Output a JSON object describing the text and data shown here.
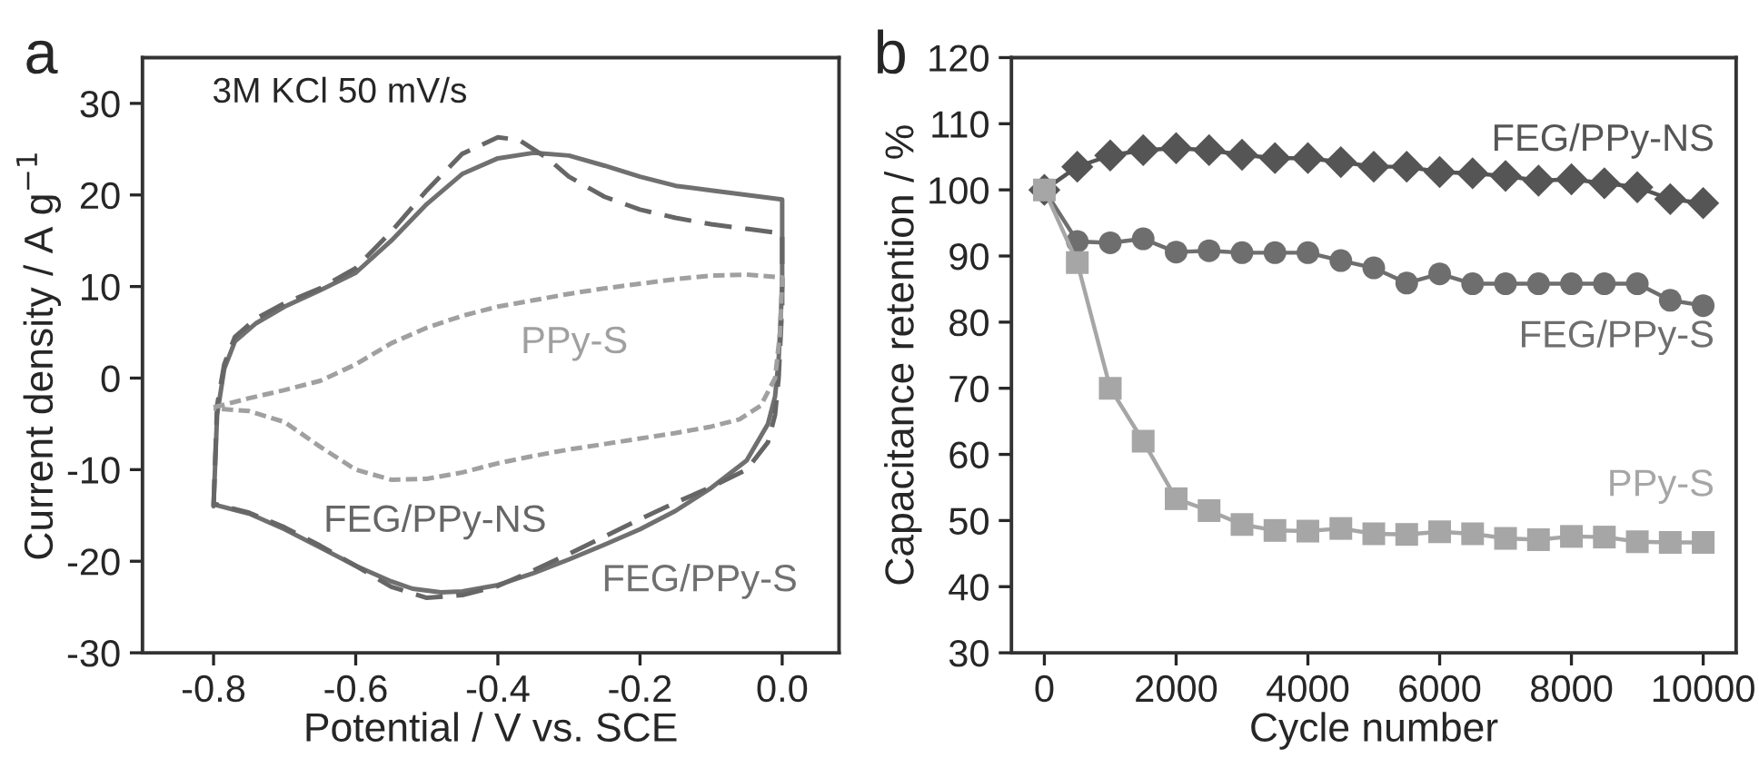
{
  "chart_data": [
    {
      "type": "line",
      "title": "a",
      "xlabel": "Potential / V vs. SCE",
      "ylabel": "Current density / A g$^{−1}$",
      "annotations": [
        "3M KCl 50 mV/s"
      ],
      "xlim": [
        -0.9,
        0.08
      ],
      "ylim": [
        -30,
        35
      ],
      "xticks": [
        {
          "value": -0.8,
          "label": "-0.8"
        },
        {
          "value": -0.6,
          "label": "-0.6"
        },
        {
          "value": -0.4,
          "label": "-0.4"
        },
        {
          "value": -0.2,
          "label": "-0.2"
        },
        {
          "value": 0.0,
          "label": "0.0"
        }
      ],
      "yticks": [
        -30,
        -20,
        -10,
        0,
        10,
        20,
        30
      ],
      "grid": false,
      "legend": false,
      "series": [
        {
          "name": "FEG/PPy-S",
          "color": "#707070",
          "line_style": "solid",
          "x": [
            -0.8,
            -0.795,
            -0.785,
            -0.77,
            -0.74,
            -0.7,
            -0.65,
            -0.6,
            -0.55,
            -0.5,
            -0.45,
            -0.4,
            -0.35,
            -0.3,
            -0.25,
            -0.2,
            -0.15,
            -0.1,
            -0.05,
            0.0,
            0.0,
            -0.005,
            -0.01,
            -0.02,
            -0.05,
            -0.1,
            -0.15,
            -0.2,
            -0.25,
            -0.3,
            -0.35,
            -0.4,
            -0.45,
            -0.48,
            -0.52,
            -0.55,
            -0.6,
            -0.65,
            -0.7,
            -0.75,
            -0.8
          ],
          "values": [
            -14,
            -4,
            1,
            4,
            6,
            7.8,
            9.6,
            11.5,
            15,
            19,
            22.3,
            24,
            24.6,
            24.3,
            23.2,
            22,
            21,
            20.5,
            20,
            19.5,
            10,
            2,
            -2,
            -5,
            -9,
            -12,
            -14.5,
            -16.5,
            -18.2,
            -19.8,
            -21.3,
            -22.6,
            -23.3,
            -23.4,
            -23,
            -22.2,
            -20.5,
            -18.5,
            -16.5,
            -14.8,
            -13.8
          ]
        },
        {
          "name": "FEG/PPy-NS",
          "color": "#666666",
          "line_style": "dashed",
          "x": [
            -0.8,
            -0.795,
            -0.785,
            -0.77,
            -0.74,
            -0.7,
            -0.65,
            -0.6,
            -0.55,
            -0.5,
            -0.45,
            -0.4,
            -0.37,
            -0.33,
            -0.3,
            -0.25,
            -0.2,
            -0.15,
            -0.1,
            -0.05,
            0.0,
            0.0,
            -0.005,
            -0.01,
            -0.02,
            -0.05,
            -0.1,
            -0.15,
            -0.2,
            -0.25,
            -0.3,
            -0.35,
            -0.4,
            -0.45,
            -0.5,
            -0.55,
            -0.6,
            -0.65,
            -0.7,
            -0.75,
            -0.8
          ],
          "values": [
            -14,
            -3,
            1.5,
            4.5,
            6.5,
            8.2,
            9.8,
            12,
            16,
            20.5,
            24.5,
            26.3,
            26,
            24,
            22,
            19.8,
            18.4,
            17.5,
            16.8,
            16.3,
            15.8,
            8,
            0,
            -4,
            -7,
            -10,
            -11.9,
            -13.6,
            -15.4,
            -17.3,
            -19.2,
            -21,
            -22.7,
            -23.7,
            -24,
            -22.8,
            -20.5,
            -18.3,
            -16.3,
            -14.7,
            -13.7
          ]
        },
        {
          "name": "PPy-S",
          "color": "#a0a0a0",
          "line_style": "dotted",
          "x": [
            -0.8,
            -0.75,
            -0.7,
            -0.65,
            -0.6,
            -0.55,
            -0.5,
            -0.45,
            -0.4,
            -0.35,
            -0.3,
            -0.25,
            -0.2,
            -0.15,
            -0.1,
            -0.05,
            0.0,
            -0.003,
            -0.01,
            -0.03,
            -0.06,
            -0.1,
            -0.15,
            -0.2,
            -0.25,
            -0.3,
            -0.35,
            -0.4,
            -0.45,
            -0.5,
            -0.55,
            -0.6,
            -0.65,
            -0.7,
            -0.75,
            -0.8
          ],
          "values": [
            -3.2,
            -2.2,
            -1.3,
            -0.3,
            1.5,
            3.8,
            5.5,
            6.8,
            7.8,
            8.5,
            9.2,
            9.8,
            10.3,
            10.8,
            11.2,
            11.3,
            11,
            5,
            0,
            -3,
            -4.5,
            -5.3,
            -6,
            -6.6,
            -7.2,
            -7.8,
            -8.5,
            -9.3,
            -10.3,
            -11,
            -11.1,
            -10,
            -7.5,
            -4.8,
            -3.6,
            -3.3
          ]
        }
      ]
    },
    {
      "type": "line",
      "title": "b",
      "xlabel": "Cycle number",
      "ylabel": "Capacitance retention / %",
      "xlim": [
        -500,
        10500
      ],
      "ylim": [
        30,
        120
      ],
      "xticks": [
        0,
        2000,
        4000,
        6000,
        8000,
        10000
      ],
      "yticks": [
        30,
        40,
        50,
        60,
        70,
        80,
        90,
        100,
        110,
        120
      ],
      "grid": false,
      "legend": false,
      "series": [
        {
          "name": "FEG/PPy-NS",
          "color": "#555555",
          "marker": "diamond",
          "x": [
            0,
            500,
            1000,
            1500,
            2000,
            2500,
            3000,
            3500,
            4000,
            4500,
            5000,
            5500,
            6000,
            6500,
            7000,
            7500,
            8000,
            8500,
            9000,
            9500,
            10000
          ],
          "values": [
            100,
            103.5,
            105.2,
            106.0,
            106.3,
            106.0,
            105.3,
            104.8,
            104.8,
            104.2,
            103.5,
            103.5,
            102.7,
            102.5,
            102.1,
            101.4,
            101.6,
            101.0,
            100.4,
            98.6,
            98.0
          ]
        },
        {
          "name": "FEG/PPy-S",
          "color": "#6e6e6e",
          "marker": "circle",
          "x": [
            0,
            500,
            1000,
            1500,
            2000,
            2500,
            3000,
            3500,
            4000,
            4500,
            5000,
            5500,
            6000,
            6500,
            7000,
            7500,
            8000,
            8500,
            9000,
            9500,
            10000
          ],
          "values": [
            100,
            92.2,
            92.0,
            92.6,
            90.6,
            90.8,
            90.5,
            90.5,
            90.5,
            89.3,
            88.2,
            85.9,
            87.3,
            85.8,
            85.8,
            85.8,
            85.8,
            85.8,
            85.8,
            83.3,
            82.5
          ]
        },
        {
          "name": "PPy-S",
          "color": "#a6a6a6",
          "marker": "square",
          "x": [
            0,
            500,
            1000,
            1500,
            2000,
            2500,
            3000,
            3500,
            4000,
            4500,
            5000,
            5500,
            6000,
            6500,
            7000,
            7500,
            8000,
            8500,
            9000,
            9500,
            10000
          ],
          "values": [
            100,
            89.0,
            70.0,
            62.0,
            53.3,
            51.5,
            49.4,
            48.5,
            48.4,
            48.8,
            48.0,
            47.9,
            48.3,
            48.0,
            47.3,
            47.1,
            47.6,
            47.5,
            46.8,
            46.7,
            46.7
          ]
        }
      ]
    }
  ]
}
